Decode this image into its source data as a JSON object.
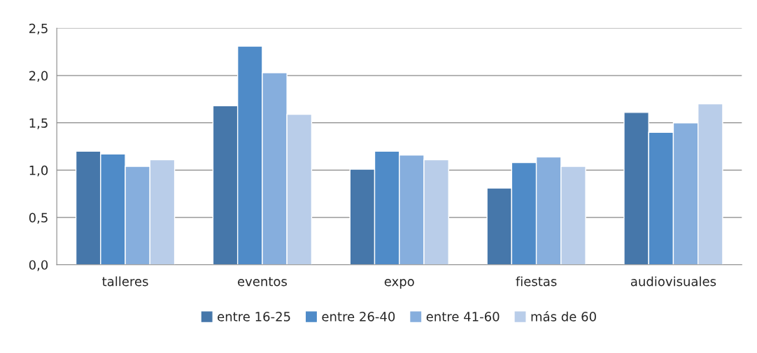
{
  "chart_data": {
    "type": "bar",
    "categories": [
      "talleres",
      "eventos",
      "expo",
      "fiestas",
      "audiovisuales"
    ],
    "series": [
      {
        "name": "entre 16-25",
        "color": "#4677aa",
        "values": [
          1.2,
          1.68,
          1.01,
          0.81,
          1.61
        ]
      },
      {
        "name": "entre 26-40",
        "color": "#4f8bc8",
        "values": [
          1.17,
          2.31,
          1.2,
          1.08,
          1.4
        ]
      },
      {
        "name": "entre 41-60",
        "color": "#86aedd",
        "values": [
          1.04,
          2.03,
          1.16,
          1.14,
          1.5
        ]
      },
      {
        "name": "más de 60",
        "color": "#b9cde9",
        "values": [
          1.11,
          1.59,
          1.11,
          1.04,
          1.7
        ]
      }
    ],
    "ylim": [
      0,
      2.5
    ],
    "yticks": [
      {
        "value": 0,
        "label": "0,0"
      },
      {
        "value": 0.5,
        "label": "0,5"
      },
      {
        "value": 1.0,
        "label": "1,0"
      },
      {
        "value": 1.5,
        "label": "1,5"
      },
      {
        "value": 2.0,
        "label": "2,0"
      },
      {
        "value": 2.5,
        "label": "2,5"
      }
    ],
    "grid": "y",
    "legend": "bottom"
  }
}
